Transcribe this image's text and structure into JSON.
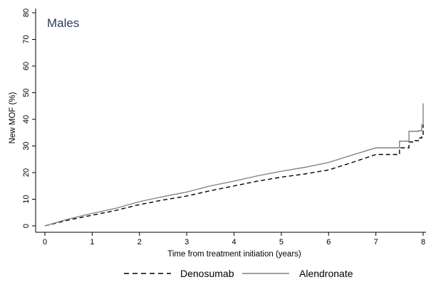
{
  "chart_data": {
    "type": "line",
    "title": "",
    "annotation": "Males",
    "xlabel": "Time from treatment initiation (years)",
    "ylabel": "New MOF (%)",
    "xlim": [
      0,
      8
    ],
    "ylim": [
      0,
      80
    ],
    "xticks": [
      0,
      1,
      2,
      3,
      4,
      5,
      6,
      7,
      8
    ],
    "yticks": [
      0,
      10,
      20,
      30,
      40,
      50,
      60,
      70,
      80
    ],
    "grid": false,
    "legend": "bottom",
    "series": [
      {
        "name": "Denosumab",
        "style": "dashed",
        "color": "#000000",
        "x": [
          0,
          0.5,
          1,
          1.5,
          2,
          2.5,
          3,
          3.5,
          4,
          4.5,
          5,
          5.5,
          6,
          6.5,
          7,
          7.5,
          7.7,
          7.8,
          7.9,
          7.97,
          8.0
        ],
        "y": [
          0,
          2.2,
          4.0,
          5.8,
          8.0,
          9.7,
          11.2,
          13.2,
          15.0,
          16.8,
          18.3,
          19.5,
          21.0,
          23.8,
          26.8,
          29.3,
          31.5,
          32.0,
          33.0,
          34.0,
          38.0
        ]
      },
      {
        "name": "Alendronate",
        "style": "solid",
        "color": "#808080",
        "x": [
          0,
          0.5,
          1,
          1.5,
          2,
          2.5,
          3,
          3.5,
          4,
          4.5,
          5,
          5.5,
          6,
          6.5,
          7,
          7.5,
          7.7,
          7.9,
          7.97,
          8.0
        ],
        "y": [
          0,
          2.6,
          4.7,
          6.6,
          9.1,
          11.0,
          12.7,
          15.0,
          16.8,
          18.8,
          20.5,
          22.0,
          23.8,
          26.6,
          29.3,
          31.8,
          35.5,
          35.7,
          38.0,
          46.0
        ]
      }
    ]
  },
  "colors": {
    "axis": "#000000",
    "annotation": "#2d3a5a"
  }
}
